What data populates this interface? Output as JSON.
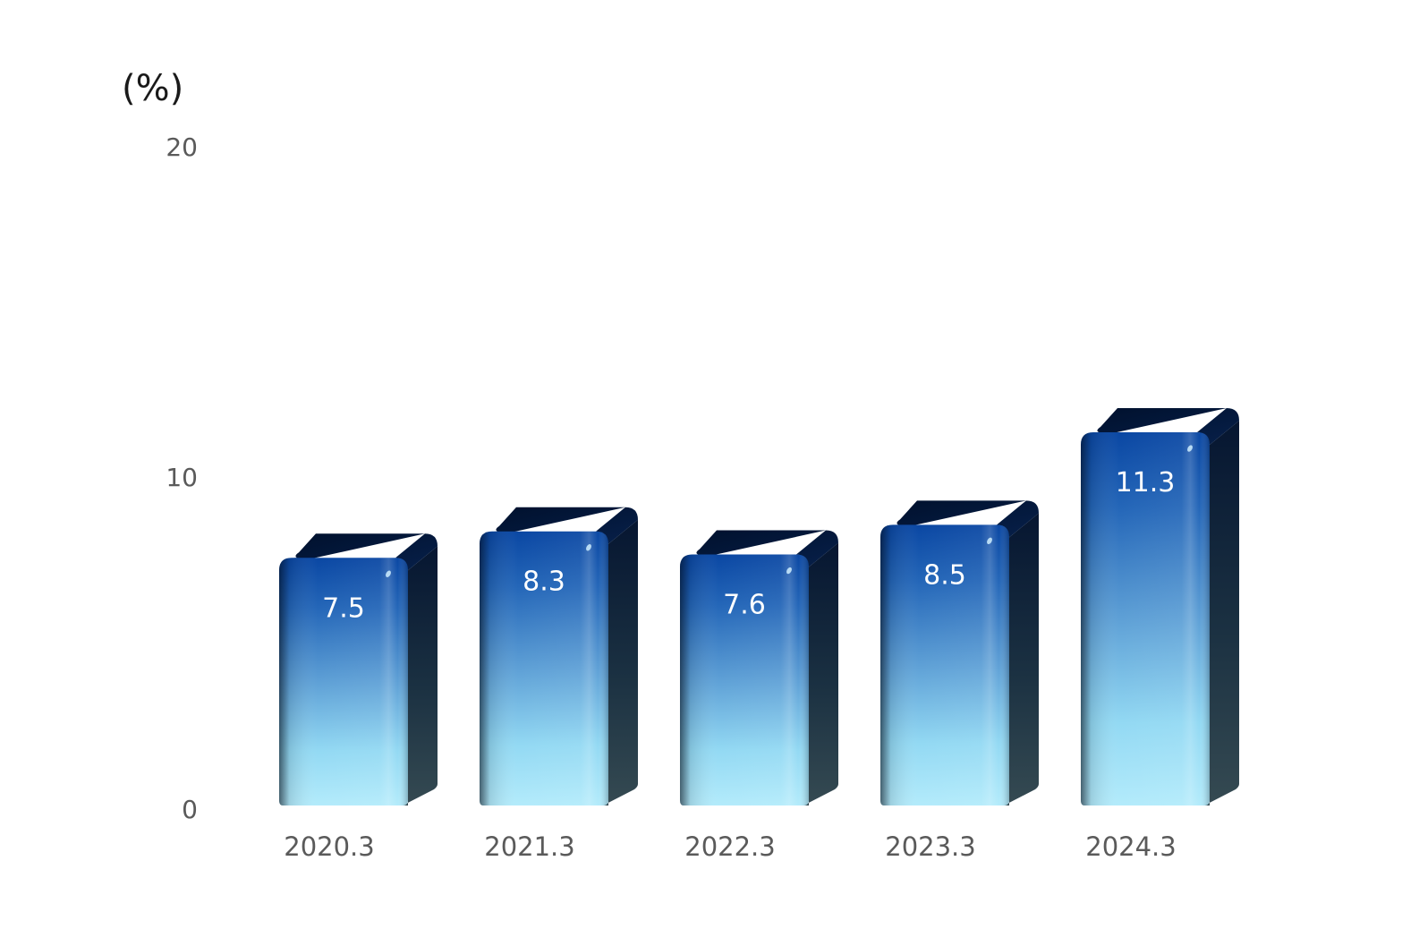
{
  "chart_data": {
    "type": "bar",
    "style": "3d-cylinder-bars",
    "unit_label": "(%)",
    "categories": [
      "2020.3",
      "2021.3",
      "2022.3",
      "2023.3",
      "2024.3"
    ],
    "values": [
      7.5,
      8.3,
      7.6,
      8.5,
      11.3
    ],
    "value_labels": [
      "7.5",
      "8.3",
      "7.6",
      "8.5",
      "11.3"
    ],
    "yticks": [
      0,
      10,
      20
    ],
    "ytick_labels": [
      "0",
      "10",
      "20"
    ],
    "ylim": [
      0,
      20
    ],
    "grid": false,
    "legend": "none",
    "colors": {
      "bar_top": "#0a4aa6",
      "bar_bottom": "#a8e6fb",
      "bar_side": "#0c1c38",
      "label_text": "#ffffff",
      "axis_text": "#5a5a5a"
    }
  }
}
